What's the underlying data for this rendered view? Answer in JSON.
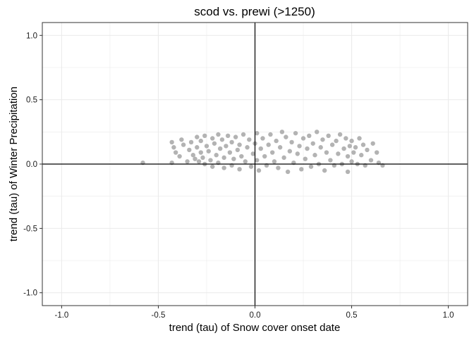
{
  "chart_data": {
    "type": "scatter",
    "title": "scod vs. prewi (>1250)",
    "xlabel": "trend (tau) of Snow cover onset date",
    "ylabel": "trend (tau) of Winter Precipitation",
    "xlim": [
      -1.1,
      1.1
    ],
    "ylim": [
      -1.1,
      1.1
    ],
    "xticks": [
      -1.0,
      -0.5,
      0.0,
      0.5,
      1.0
    ],
    "xtick_labels": [
      "-1.0",
      "-0.5",
      "0.0",
      "0.5",
      "1.0"
    ],
    "yticks": [
      -1.0,
      -0.5,
      0.0,
      0.5,
      1.0
    ],
    "ytick_labels": [
      "-1.0",
      "-0.5",
      "0.0",
      "0.5",
      "1.0"
    ],
    "grid": true,
    "reference_lines": {
      "x": 0,
      "y": 0
    },
    "point_color": "#b3b3b3",
    "panel_border_color": "#333333",
    "grid_color": "#ebebeb",
    "series": [
      {
        "points": [
          [
            -0.58,
            0.01
          ],
          [
            -0.43,
            0.01
          ],
          [
            -0.43,
            0.17
          ],
          [
            -0.42,
            0.13
          ],
          [
            -0.41,
            0.09
          ],
          [
            -0.39,
            0.06
          ],
          [
            -0.38,
            0.19
          ],
          [
            -0.37,
            0.15
          ],
          [
            -0.35,
            0.02
          ],
          [
            -0.34,
            0.11
          ],
          [
            -0.33,
            0.17
          ],
          [
            -0.32,
            0.07
          ],
          [
            -0.31,
            0.04
          ],
          [
            -0.3,
            0.21
          ],
          [
            -0.3,
            0.13
          ],
          [
            -0.29,
            0.02
          ],
          [
            -0.28,
            0.09
          ],
          [
            -0.28,
            0.18
          ],
          [
            -0.27,
            0.05
          ],
          [
            -0.26,
            0.22
          ],
          [
            -0.26,
            0.0
          ],
          [
            -0.25,
            0.14
          ],
          [
            -0.24,
            0.1
          ],
          [
            -0.23,
            0.03
          ],
          [
            -0.22,
            0.2
          ],
          [
            -0.22,
            -0.02
          ],
          [
            -0.21,
            0.16
          ],
          [
            -0.2,
            0.07
          ],
          [
            -0.19,
            0.23
          ],
          [
            -0.19,
            0.01
          ],
          [
            -0.18,
            0.12
          ],
          [
            -0.17,
            0.19
          ],
          [
            -0.16,
            -0.03
          ],
          [
            -0.16,
            0.05
          ],
          [
            -0.15,
            0.14
          ],
          [
            -0.14,
            0.22
          ],
          [
            -0.13,
            0.09
          ],
          [
            -0.12,
            -0.01
          ],
          [
            -0.12,
            0.17
          ],
          [
            -0.11,
            0.04
          ],
          [
            -0.1,
            0.21
          ],
          [
            -0.09,
            0.11
          ],
          [
            -0.08,
            -0.04
          ],
          [
            -0.08,
            0.15
          ],
          [
            -0.07,
            0.06
          ],
          [
            -0.06,
            0.23
          ],
          [
            -0.05,
            0.02
          ],
          [
            -0.04,
            0.13
          ],
          [
            -0.03,
            0.19
          ],
          [
            -0.02,
            -0.02
          ],
          [
            -0.01,
            0.08
          ],
          [
            0.0,
            0.16
          ],
          [
            0.01,
            0.24
          ],
          [
            0.01,
            0.03
          ],
          [
            0.02,
            -0.05
          ],
          [
            0.03,
            0.12
          ],
          [
            0.04,
            0.2
          ],
          [
            0.05,
            0.06
          ],
          [
            0.06,
            -0.01
          ],
          [
            0.07,
            0.15
          ],
          [
            0.08,
            0.23
          ],
          [
            0.09,
            0.09
          ],
          [
            0.1,
            0.02
          ],
          [
            0.11,
            0.18
          ],
          [
            0.12,
            -0.03
          ],
          [
            0.13,
            0.13
          ],
          [
            0.14,
            0.25
          ],
          [
            0.15,
            0.05
          ],
          [
            0.16,
            0.21
          ],
          [
            0.17,
            -0.06
          ],
          [
            0.18,
            0.1
          ],
          [
            0.19,
            0.17
          ],
          [
            0.2,
            0.01
          ],
          [
            0.21,
            0.24
          ],
          [
            0.22,
            0.08
          ],
          [
            0.23,
            0.14
          ],
          [
            0.24,
            -0.04
          ],
          [
            0.25,
            0.2
          ],
          [
            0.26,
            0.04
          ],
          [
            0.27,
            0.12
          ],
          [
            0.28,
            0.22
          ],
          [
            0.29,
            -0.02
          ],
          [
            0.3,
            0.16
          ],
          [
            0.31,
            0.07
          ],
          [
            0.32,
            0.25
          ],
          [
            0.33,
            0.0
          ],
          [
            0.34,
            0.13
          ],
          [
            0.35,
            0.19
          ],
          [
            0.36,
            -0.05
          ],
          [
            0.37,
            0.09
          ],
          [
            0.38,
            0.22
          ],
          [
            0.39,
            0.03
          ],
          [
            0.4,
            0.15
          ],
          [
            0.41,
            -0.01
          ],
          [
            0.42,
            0.18
          ],
          [
            0.43,
            0.08
          ],
          [
            0.44,
            0.23
          ],
          [
            0.45,
            0.0
          ],
          [
            0.46,
            0.12
          ],
          [
            0.47,
            0.2
          ],
          [
            0.48,
            -0.06
          ],
          [
            0.48,
            0.06
          ],
          [
            0.49,
            0.14
          ],
          [
            0.5,
            0.18
          ],
          [
            0.5,
            0.02
          ],
          [
            0.51,
            0.09
          ],
          [
            0.52,
            0.13
          ],
          [
            0.53,
            0.0
          ],
          [
            0.54,
            0.2
          ],
          [
            0.55,
            0.07
          ],
          [
            0.56,
            0.15
          ],
          [
            0.57,
            -0.01
          ],
          [
            0.58,
            0.11
          ],
          [
            0.6,
            0.03
          ],
          [
            0.61,
            0.16
          ],
          [
            0.63,
            0.09
          ],
          [
            0.64,
            0.01
          ],
          [
            0.66,
            -0.01
          ]
        ]
      }
    ]
  }
}
